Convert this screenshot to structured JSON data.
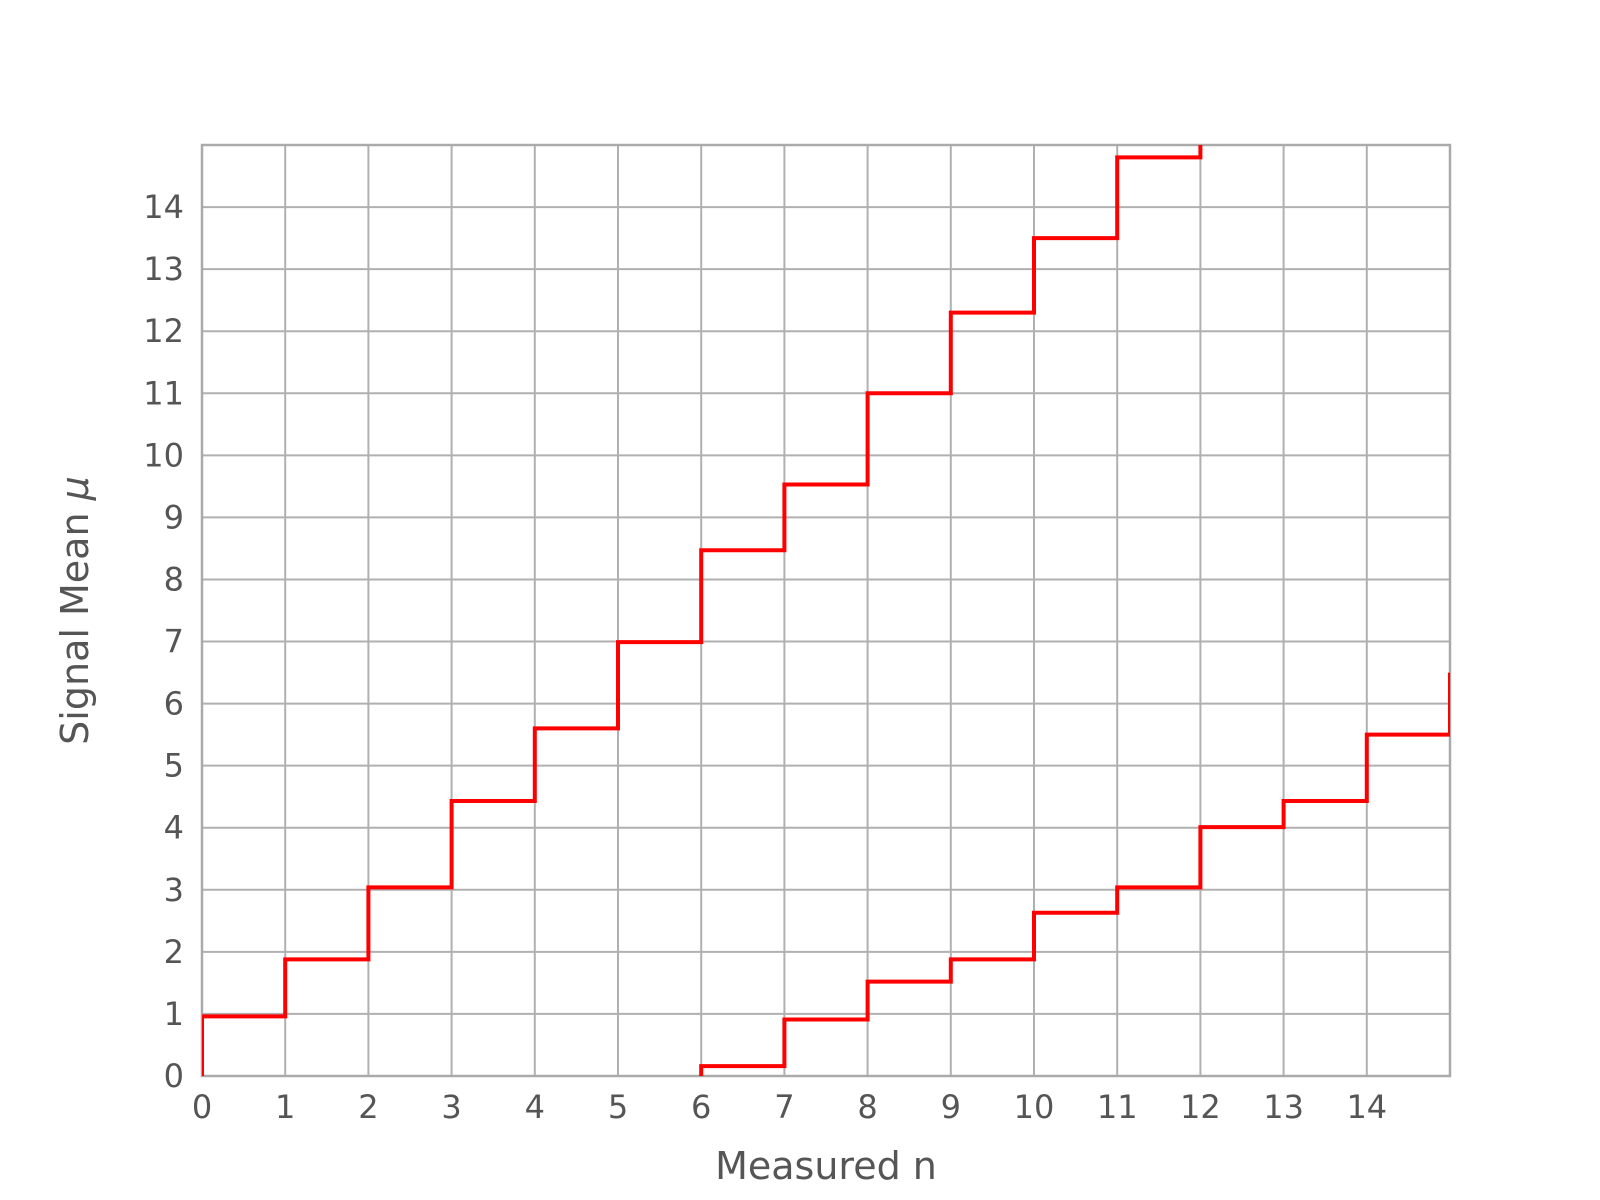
{
  "chart_data": {
    "type": "line",
    "title": "",
    "xlabel": "Measured n",
    "ylabel": "Signal Mean",
    "ylabel_symbol": "μ",
    "xlim": [
      0,
      15
    ],
    "ylim": [
      0,
      15
    ],
    "xticks": [
      0,
      1,
      2,
      3,
      4,
      5,
      6,
      7,
      8,
      9,
      10,
      11,
      12,
      13,
      14
    ],
    "yticks": [
      0,
      1,
      2,
      3,
      4,
      5,
      6,
      7,
      8,
      9,
      10,
      11,
      12,
      13,
      14
    ],
    "grid": true,
    "step": "post",
    "colors": {
      "line": "#ff0000",
      "grid": "#b0b0b0",
      "text": "#555555"
    },
    "series": [
      {
        "x": [
          0,
          1,
          2,
          3,
          4,
          5,
          6,
          7,
          8,
          9,
          10,
          11,
          12
        ],
        "values": [
          0.96,
          1.88,
          3.04,
          4.43,
          5.6,
          6.99,
          8.47,
          9.53,
          11.0,
          12.3,
          13.5,
          14.8,
          15.2
        ]
      },
      {
        "x": [
          6,
          7,
          8,
          9,
          10,
          11,
          12,
          13,
          14,
          15
        ],
        "values": [
          0.16,
          0.91,
          1.52,
          1.88,
          2.63,
          3.04,
          4.01,
          4.43,
          5.5,
          6.5
        ]
      }
    ]
  }
}
